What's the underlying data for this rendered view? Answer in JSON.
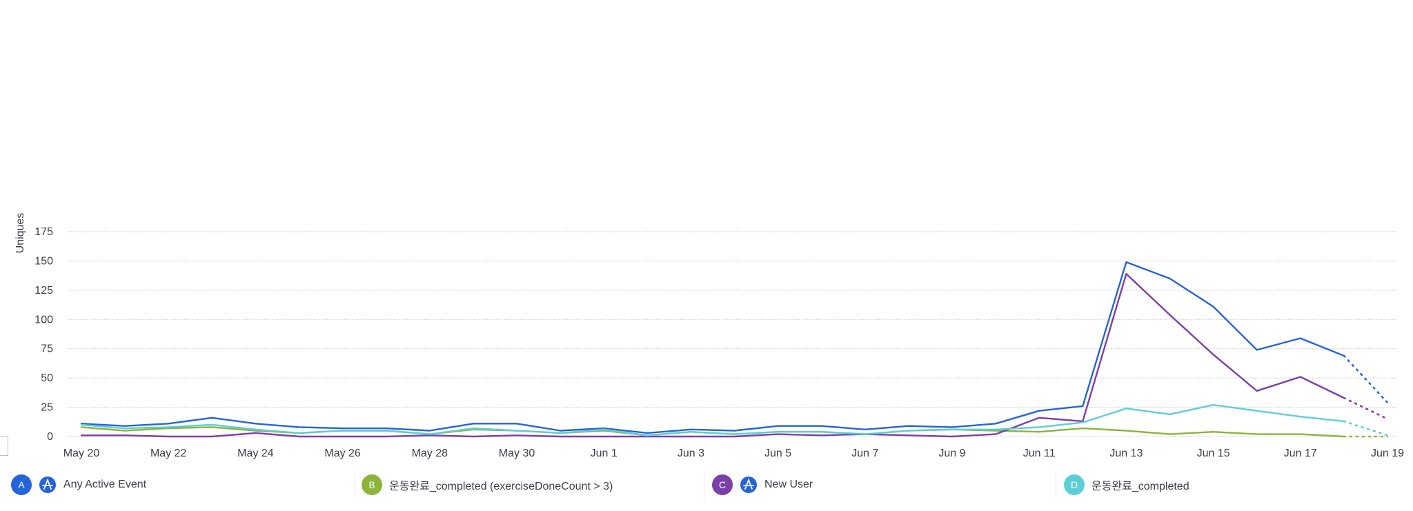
{
  "chart_data": {
    "type": "line",
    "ylabel": "Uniques",
    "xlabel": "",
    "ylim": [
      0,
      175
    ],
    "y_ticks": [
      0,
      25,
      50,
      75,
      100,
      125,
      150,
      175
    ],
    "grid": true,
    "x": [
      "May 20",
      "May 21",
      "May 22",
      "May 23",
      "May 24",
      "May 25",
      "May 26",
      "May 27",
      "May 28",
      "May 29",
      "May 30",
      "May 31",
      "Jun 1",
      "Jun 2",
      "Jun 3",
      "Jun 4",
      "Jun 5",
      "Jun 6",
      "Jun 7",
      "Jun 8",
      "Jun 9",
      "Jun 10",
      "Jun 11",
      "Jun 12",
      "Jun 13",
      "Jun 14",
      "Jun 15",
      "Jun 16",
      "Jun 17",
      "Jun 18",
      "Jun 19"
    ],
    "x_tick_labels": [
      "May 20",
      "May 22",
      "May 24",
      "May 26",
      "May 28",
      "May 30",
      "Jun 1",
      "Jun 3",
      "Jun 5",
      "Jun 7",
      "Jun 9",
      "Jun 11",
      "Jun 13",
      "Jun 15",
      "Jun 17",
      "Jun 19"
    ],
    "incomplete_last_segment": true,
    "series": [
      {
        "id": "A",
        "name": "Any Active Event",
        "color": "#2563d9",
        "values": [
          11,
          9,
          11,
          16,
          11,
          8,
          7,
          7,
          5,
          11,
          11,
          5,
          7,
          3,
          6,
          5,
          9,
          9,
          6,
          9,
          8,
          11,
          22,
          26,
          149,
          135,
          111,
          74,
          84,
          69,
          29
        ]
      },
      {
        "id": "B",
        "name": "운동완료_completed (exerciseDoneCount > 3)",
        "color": "#8cb43c",
        "values": [
          8,
          5,
          7,
          8,
          5,
          3,
          5,
          5,
          2,
          6,
          5,
          3,
          5,
          1,
          4,
          2,
          4,
          4,
          2,
          5,
          6,
          5,
          4,
          7,
          5,
          2,
          4,
          2,
          2,
          0,
          0
        ]
      },
      {
        "id": "C",
        "name": "New User",
        "color": "#7b3fa8",
        "values": [
          1,
          1,
          0,
          0,
          3,
          0,
          0,
          0,
          1,
          0,
          1,
          0,
          0,
          0,
          0,
          0,
          2,
          1,
          2,
          1,
          0,
          2,
          16,
          13,
          139,
          104,
          70,
          39,
          51,
          33,
          15
        ]
      },
      {
        "id": "D",
        "name": "운동완료_completed",
        "color": "#5ccfd6",
        "values": [
          10,
          7,
          8,
          10,
          6,
          3,
          5,
          5,
          2,
          7,
          5,
          3,
          6,
          1,
          4,
          2,
          4,
          4,
          2,
          5,
          6,
          6,
          8,
          12,
          24,
          19,
          27,
          22,
          17,
          13,
          1
        ]
      }
    ]
  },
  "legend": [
    {
      "badge": "A",
      "label": "Any Active Event",
      "color": "#2563d9",
      "icon": "event-a-icon"
    },
    {
      "badge": "B",
      "label": "운동완료_completed (exerciseDoneCount > 3)",
      "color": "#8cb43c"
    },
    {
      "badge": "C",
      "label": "New User",
      "color": "#7b3fa8",
      "icon": "event-a-icon"
    },
    {
      "badge": "D",
      "label": "운동완료_completed",
      "color": "#5ccfd6"
    }
  ]
}
